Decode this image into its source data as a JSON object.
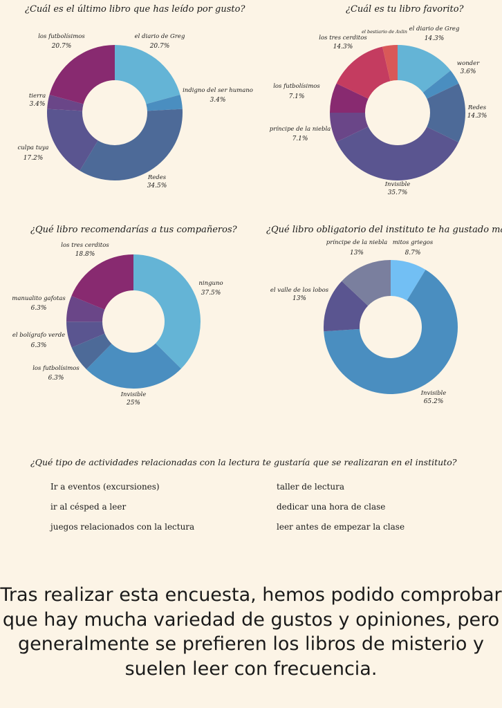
{
  "palette": {
    "background": "#fcf4e6",
    "light_blue": "#64b4d6",
    "steel_blue": "#4a8ec0",
    "slate": "#4d6a98",
    "indigo": "#5a5590",
    "purple": "#6a4688",
    "magenta": "#882a70",
    "crimson": "#c43c60",
    "red": "#d95858",
    "sky": "#72bff4",
    "grey_blue": "#7a7f9e"
  },
  "chart_data": [
    {
      "type": "pie",
      "donut": true,
      "title": "¿Cuál es el último libro que has leído por gusto?",
      "slices": [
        {
          "label": "el diario de Greg",
          "value": 20.7,
          "display": "20.7%",
          "color": "#64b4d6"
        },
        {
          "label": "indigno del ser humano",
          "value": 3.4,
          "display": "3.4%",
          "color": "#4a8ec0"
        },
        {
          "label": "Redes",
          "value": 34.5,
          "display": "34.5%",
          "color": "#4d6a98"
        },
        {
          "label": "culpa tuya",
          "value": 17.2,
          "display": "17.2%",
          "color": "#5a5590"
        },
        {
          "label": "tierra",
          "value": 3.4,
          "display": "3.4%",
          "color": "#6a4688"
        },
        {
          "label": "los futbolísimos",
          "value": 20.7,
          "display": "20.7%",
          "color": "#882a70"
        }
      ]
    },
    {
      "type": "pie",
      "donut": true,
      "title": "¿Cuál es tu libro favorito?",
      "slices": [
        {
          "label": "el diario de Greg",
          "value": 14.3,
          "display": "14.3%",
          "color": "#64b4d6"
        },
        {
          "label": "wonder",
          "value": 3.6,
          "display": "3.6%",
          "color": "#4a8ec0"
        },
        {
          "label": "Redes",
          "value": 14.3,
          "display": "14.3%",
          "color": "#4d6a98"
        },
        {
          "label": "Invisible",
          "value": 35.7,
          "display": "35.7%",
          "color": "#5a5590"
        },
        {
          "label": "príncipe de la niebla",
          "value": 7.1,
          "display": "7.1%",
          "color": "#6a4688"
        },
        {
          "label": "los futbolísimos",
          "value": 7.1,
          "display": "7.1%",
          "color": "#882a70"
        },
        {
          "label": "los tres cerditos",
          "value": 14.3,
          "display": "14.3%",
          "color": "#c43c60"
        },
        {
          "label": "el bestiario de Axlin",
          "value": 3.6,
          "display": "",
          "color": "#d95858"
        }
      ]
    },
    {
      "type": "pie",
      "donut": true,
      "title": "¿Qué libro recomendarías a tus compañeros?",
      "slices": [
        {
          "label": "ninguno",
          "value": 37.5,
          "display": "37.5%",
          "color": "#64b4d6"
        },
        {
          "label": "Invisible",
          "value": 25,
          "display": "25%",
          "color": "#4a8ec0"
        },
        {
          "label": "los futbolísimos",
          "value": 6.3,
          "display": "6.3%",
          "color": "#4d6a98"
        },
        {
          "label": "el bolígrafo verde",
          "value": 6.3,
          "display": "6.3%",
          "color": "#5a5590"
        },
        {
          "label": "manualito gafotas",
          "value": 6.3,
          "display": "6.3%",
          "color": "#6a4688"
        },
        {
          "label": "los tres cerditos",
          "value": 18.8,
          "display": "18.8%",
          "color": "#882a70"
        }
      ]
    },
    {
      "type": "pie",
      "donut": true,
      "title": "¿Qué libro obligatorio del instituto te ha gustado más?",
      "slices": [
        {
          "label": "mitos griegos",
          "value": 8.7,
          "display": "8.7%",
          "color": "#72bff4"
        },
        {
          "label": "Invisible",
          "value": 65.2,
          "display": "65.2%",
          "color": "#4a8ec0"
        },
        {
          "label": "el valle de los lobos",
          "value": 13,
          "display": "13%",
          "color": "#5a5590"
        },
        {
          "label": "príncipe de la niebla",
          "value": 13,
          "display": "13%",
          "color": "#7a7f9e"
        }
      ]
    }
  ],
  "activities": {
    "question": "¿Qué tipo de actividades relacionadas con la lectura te gustaría que se realizaran en el instituto?",
    "left": [
      "Ir a eventos (excursiones)",
      "ir al césped a leer",
      "juegos relacionados con la lectura"
    ],
    "right": [
      "taller de lectura",
      "dedicar una hora de clase",
      "leer antes de empezar la clase"
    ]
  },
  "conclusion": {
    "lines": [
      "Tras realizar esta encuesta, hemos podido comprobar",
      "que hay mucha variedad de gustos y opiniones, pero",
      "generalmente se prefieren los libros de misterio y",
      "suelen leer con frecuencia."
    ]
  }
}
